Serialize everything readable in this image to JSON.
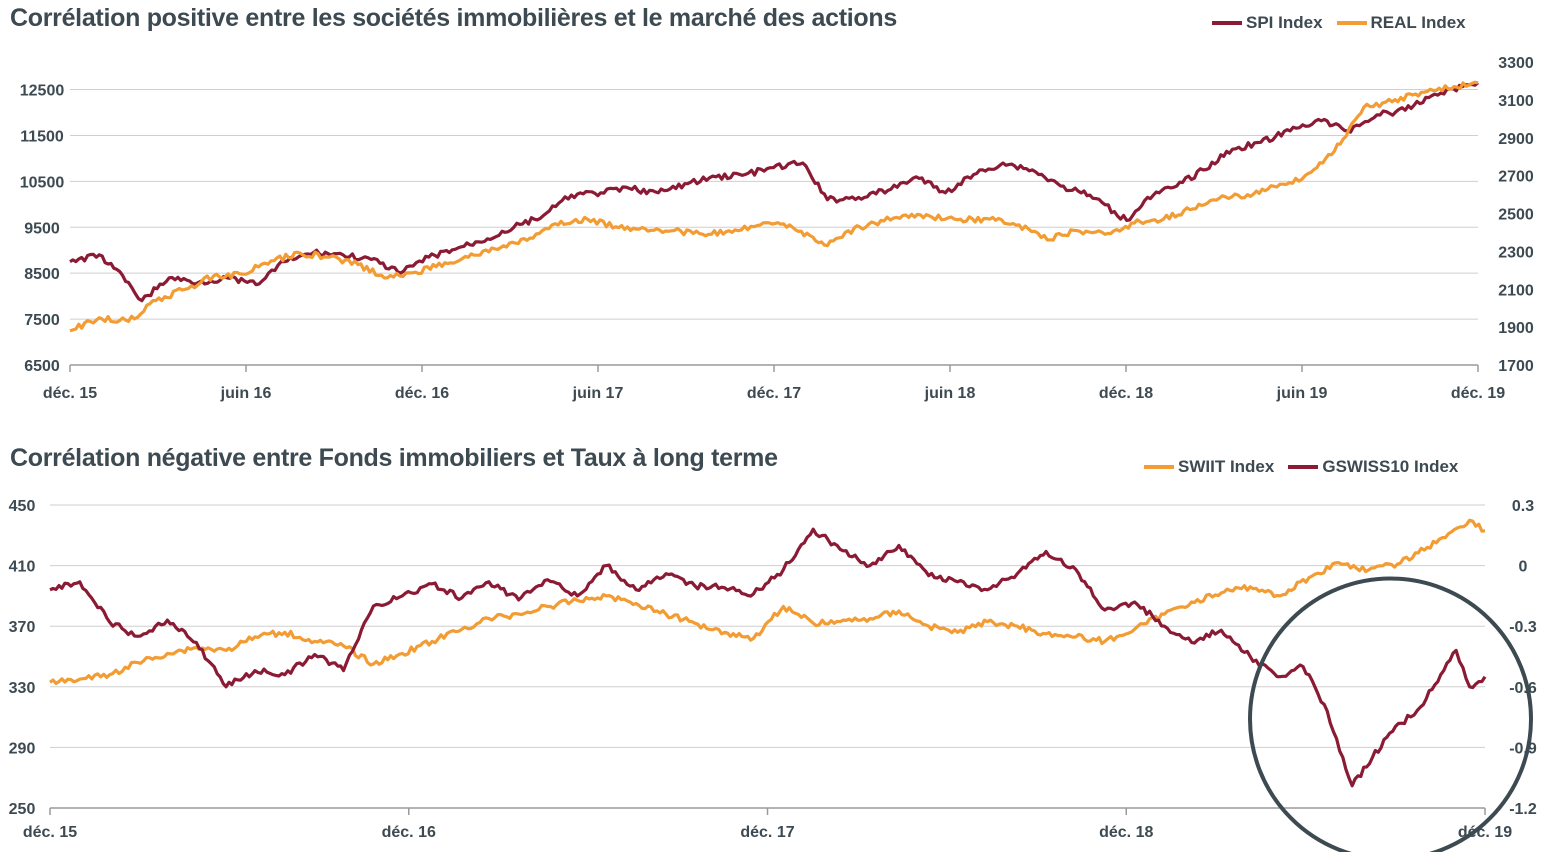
{
  "colors": {
    "maroon": "#8b1a35",
    "orange": "#f29c33",
    "grid": "#cfcfcf",
    "axis": "#9a9a9a",
    "circle": "#3d4a52"
  },
  "chart_data": [
    {
      "type": "line",
      "title": "Corrélation positive entre les sociétés immobilières et le marché des actions",
      "x_range": [
        "2015-12-01",
        "2019-12-31"
      ],
      "x_ticks": [
        "déc. 15",
        "juin 16",
        "déc. 16",
        "juin 17",
        "déc. 17",
        "juin 18",
        "déc. 18",
        "juin 19",
        "déc. 19"
      ],
      "left_axis": {
        "ticks": [
          6500,
          7500,
          8500,
          9500,
          10500,
          11500,
          12500
        ],
        "ylim": [
          6500,
          13100
        ]
      },
      "right_axis": {
        "ticks": [
          1700,
          1900,
          2100,
          2300,
          2500,
          2700,
          2900,
          3100,
          3300
        ],
        "ylim": [
          1700,
          3300
        ]
      },
      "grid": "horizontal",
      "legend_position": "top-right",
      "series": [
        {
          "name": "SPI Index",
          "axis": "left",
          "color": "#8b1a35",
          "points": [
            [
              "2015-12-01",
              8750
            ],
            [
              "2016-01-01",
              8900
            ],
            [
              "2016-02-01",
              8300
            ],
            [
              "2016-02-15",
              7900
            ],
            [
              "2016-03-15",
              8400
            ],
            [
              "2016-04-15",
              8300
            ],
            [
              "2016-05-15",
              8400
            ],
            [
              "2016-06-15",
              8250
            ],
            [
              "2016-07-15",
              8750
            ],
            [
              "2016-08-15",
              8950
            ],
            [
              "2016-09-15",
              8900
            ],
            [
              "2016-10-15",
              8800
            ],
            [
              "2016-11-15",
              8500
            ],
            [
              "2016-12-15",
              8850
            ],
            [
              "2017-01-15",
              9050
            ],
            [
              "2017-02-15",
              9250
            ],
            [
              "2017-03-15",
              9500
            ],
            [
              "2017-04-15",
              9750
            ],
            [
              "2017-05-15",
              10200
            ],
            [
              "2017-06-15",
              10250
            ],
            [
              "2017-07-15",
              10350
            ],
            [
              "2017-08-15",
              10250
            ],
            [
              "2017-09-15",
              10450
            ],
            [
              "2017-10-15",
              10600
            ],
            [
              "2017-11-15",
              10650
            ],
            [
              "2017-12-15",
              10800
            ],
            [
              "2018-01-15",
              10900
            ],
            [
              "2018-02-10",
              10100
            ],
            [
              "2018-03-15",
              10150
            ],
            [
              "2018-04-15",
              10300
            ],
            [
              "2018-05-15",
              10600
            ],
            [
              "2018-06-15",
              10250
            ],
            [
              "2018-07-15",
              10650
            ],
            [
              "2018-08-15",
              10900
            ],
            [
              "2018-09-15",
              10750
            ],
            [
              "2018-10-15",
              10400
            ],
            [
              "2018-11-15",
              10200
            ],
            [
              "2018-12-24",
              9650
            ],
            [
              "2019-01-15",
              10150
            ],
            [
              "2019-02-15",
              10400
            ],
            [
              "2019-03-15",
              10750
            ],
            [
              "2019-04-15",
              11200
            ],
            [
              "2019-05-15",
              11350
            ],
            [
              "2019-06-15",
              11600
            ],
            [
              "2019-07-15",
              11850
            ],
            [
              "2019-08-15",
              11600
            ],
            [
              "2019-09-15",
              11950
            ],
            [
              "2019-10-15",
              12050
            ],
            [
              "2019-11-15",
              12400
            ],
            [
              "2019-12-31",
              12650
            ]
          ]
        },
        {
          "name": "REAL Index",
          "axis": "right",
          "color": "#f29c33",
          "points": [
            [
              "2015-12-01",
              1880
            ],
            [
              "2016-01-01",
              1950
            ],
            [
              "2016-02-01",
              1930
            ],
            [
              "2016-03-01",
              2040
            ],
            [
              "2016-04-01",
              2100
            ],
            [
              "2016-05-01",
              2170
            ],
            [
              "2016-06-01",
              2180
            ],
            [
              "2016-07-01",
              2250
            ],
            [
              "2016-08-01",
              2290
            ],
            [
              "2016-09-01",
              2270
            ],
            [
              "2016-10-01",
              2230
            ],
            [
              "2016-11-01",
              2160
            ],
            [
              "2016-12-01",
              2190
            ],
            [
              "2017-01-01",
              2240
            ],
            [
              "2017-02-01",
              2280
            ],
            [
              "2017-03-01",
              2320
            ],
            [
              "2017-04-01",
              2370
            ],
            [
              "2017-05-01",
              2440
            ],
            [
              "2017-06-01",
              2470
            ],
            [
              "2017-07-01",
              2430
            ],
            [
              "2017-08-01",
              2420
            ],
            [
              "2017-09-01",
              2410
            ],
            [
              "2017-10-01",
              2390
            ],
            [
              "2017-11-01",
              2400
            ],
            [
              "2017-12-01",
              2440
            ],
            [
              "2018-01-01",
              2440
            ],
            [
              "2018-02-10",
              2330
            ],
            [
              "2018-03-01",
              2400
            ],
            [
              "2018-04-01",
              2450
            ],
            [
              "2018-05-01",
              2490
            ],
            [
              "2018-06-01",
              2480
            ],
            [
              "2018-07-01",
              2470
            ],
            [
              "2018-08-01",
              2470
            ],
            [
              "2018-09-01",
              2440
            ],
            [
              "2018-10-01",
              2360
            ],
            [
              "2018-11-01",
              2410
            ],
            [
              "2018-12-01",
              2390
            ],
            [
              "2019-01-01",
              2450
            ],
            [
              "2019-02-01",
              2470
            ],
            [
              "2019-03-01",
              2520
            ],
            [
              "2019-04-01",
              2580
            ],
            [
              "2019-05-01",
              2600
            ],
            [
              "2019-06-01",
              2640
            ],
            [
              "2019-07-01",
              2700
            ],
            [
              "2019-08-01",
              2830
            ],
            [
              "2019-09-01",
              3060
            ],
            [
              "2019-10-01",
              3090
            ],
            [
              "2019-11-01",
              3140
            ],
            [
              "2019-12-31",
              3190
            ]
          ]
        }
      ]
    },
    {
      "type": "line",
      "title": "Corrélation négative entre Fonds immobiliers et Taux à long terme",
      "x_range": [
        "2015-12-01",
        "2019-12-31"
      ],
      "x_ticks": [
        "déc. 15",
        "déc. 16",
        "déc. 17",
        "déc. 18",
        "déc. 19"
      ],
      "left_axis": {
        "ticks": [
          250,
          290,
          330,
          370,
          410,
          450
        ],
        "ylim": [
          250,
          450
        ]
      },
      "right_axis": {
        "ticks": [
          -1.2,
          -0.9,
          -0.6,
          -0.3,
          0,
          0.3
        ],
        "ylim": [
          -1.2,
          0.3
        ]
      },
      "grid": "horizontal",
      "legend_position": "top-right",
      "annotations": [
        {
          "type": "circle",
          "around": "GSWISS10 Index",
          "period": [
            "2019-06-01",
            "2019-12-31"
          ]
        }
      ],
      "series": [
        {
          "name": "SWIIT Index",
          "axis": "left",
          "color": "#f29c33",
          "points": [
            [
              "2015-12-01",
              333
            ],
            [
              "2016-01-01",
              335
            ],
            [
              "2016-02-01",
              338
            ],
            [
              "2016-03-01",
              346
            ],
            [
              "2016-04-01",
              352
            ],
            [
              "2016-05-01",
              356
            ],
            [
              "2016-06-01",
              354
            ],
            [
              "2016-07-01",
              363
            ],
            [
              "2016-08-01",
              366
            ],
            [
              "2016-09-01",
              360
            ],
            [
              "2016-10-01",
              357
            ],
            [
              "2016-11-01",
              345
            ],
            [
              "2016-12-01",
              352
            ],
            [
              "2017-01-01",
              360
            ],
            [
              "2017-02-01",
              368
            ],
            [
              "2017-03-01",
              375
            ],
            [
              "2017-04-01",
              378
            ],
            [
              "2017-05-01",
              383
            ],
            [
              "2017-06-01",
              387
            ],
            [
              "2017-07-01",
              390
            ],
            [
              "2017-08-01",
              385
            ],
            [
              "2017-09-01",
              378
            ],
            [
              "2017-10-01",
              372
            ],
            [
              "2017-11-01",
              366
            ],
            [
              "2017-12-01",
              362
            ],
            [
              "2018-01-01",
              383
            ],
            [
              "2018-02-01",
              372
            ],
            [
              "2018-03-01",
              373
            ],
            [
              "2018-04-01",
              375
            ],
            [
              "2018-05-01",
              380
            ],
            [
              "2018-06-01",
              370
            ],
            [
              "2018-07-01",
              366
            ],
            [
              "2018-08-01",
              373
            ],
            [
              "2018-09-01",
              370
            ],
            [
              "2018-10-01",
              365
            ],
            [
              "2018-11-01",
              363
            ],
            [
              "2018-12-01",
              360
            ],
            [
              "2019-01-01",
              368
            ],
            [
              "2019-02-01",
              378
            ],
            [
              "2019-03-01",
              386
            ],
            [
              "2019-04-01",
              392
            ],
            [
              "2019-05-01",
              396
            ],
            [
              "2019-06-01",
              390
            ],
            [
              "2019-07-01",
              402
            ],
            [
              "2019-08-01",
              412
            ],
            [
              "2019-09-01",
              407
            ],
            [
              "2019-10-01",
              411
            ],
            [
              "2019-11-01",
              422
            ],
            [
              "2019-12-15",
              440
            ],
            [
              "2019-12-31",
              433
            ]
          ]
        },
        {
          "name": "GSWISS10 Index",
          "axis": "right",
          "color": "#8b1a35",
          "points": [
            [
              "2015-12-01",
              -0.12
            ],
            [
              "2016-01-01",
              -0.08
            ],
            [
              "2016-02-01",
              -0.28
            ],
            [
              "2016-03-01",
              -0.35
            ],
            [
              "2016-04-01",
              -0.27
            ],
            [
              "2016-05-01",
              -0.38
            ],
            [
              "2016-06-01",
              -0.6
            ],
            [
              "2016-07-01",
              -0.52
            ],
            [
              "2016-08-01",
              -0.54
            ],
            [
              "2016-09-01",
              -0.44
            ],
            [
              "2016-10-01",
              -0.52
            ],
            [
              "2016-11-01",
              -0.2
            ],
            [
              "2016-12-01",
              -0.15
            ],
            [
              "2017-01-01",
              -0.09
            ],
            [
              "2017-02-01",
              -0.16
            ],
            [
              "2017-03-01",
              -0.08
            ],
            [
              "2017-04-01",
              -0.17
            ],
            [
              "2017-05-01",
              -0.07
            ],
            [
              "2017-06-01",
              -0.15
            ],
            [
              "2017-07-01",
              0.0
            ],
            [
              "2017-08-01",
              -0.12
            ],
            [
              "2017-09-01",
              -0.04
            ],
            [
              "2017-10-01",
              -0.1
            ],
            [
              "2017-11-01",
              -0.11
            ],
            [
              "2017-12-01",
              -0.14
            ],
            [
              "2018-01-01",
              -0.02
            ],
            [
              "2018-02-01",
              0.18
            ],
            [
              "2018-03-01",
              0.08
            ],
            [
              "2018-04-01",
              0.0
            ],
            [
              "2018-05-01",
              0.1
            ],
            [
              "2018-06-01",
              -0.05
            ],
            [
              "2018-07-01",
              -0.08
            ],
            [
              "2018-08-01",
              -0.12
            ],
            [
              "2018-09-01",
              -0.04
            ],
            [
              "2018-10-01",
              0.07
            ],
            [
              "2018-11-01",
              -0.02
            ],
            [
              "2018-12-01",
              -0.22
            ],
            [
              "2019-01-01",
              -0.18
            ],
            [
              "2019-02-01",
              -0.3
            ],
            [
              "2019-03-01",
              -0.38
            ],
            [
              "2019-04-01",
              -0.32
            ],
            [
              "2019-05-01",
              -0.45
            ],
            [
              "2019-06-01",
              -0.55
            ],
            [
              "2019-06-25",
              -0.5
            ],
            [
              "2019-07-20",
              -0.72
            ],
            [
              "2019-08-15",
              -1.09
            ],
            [
              "2019-09-05",
              -0.95
            ],
            [
              "2019-09-20",
              -0.85
            ],
            [
              "2019-10-05",
              -0.78
            ],
            [
              "2019-10-25",
              -0.7
            ],
            [
              "2019-11-15",
              -0.54
            ],
            [
              "2019-12-01",
              -0.42
            ],
            [
              "2019-12-15",
              -0.6
            ],
            [
              "2019-12-31",
              -0.55
            ]
          ]
        }
      ]
    }
  ]
}
